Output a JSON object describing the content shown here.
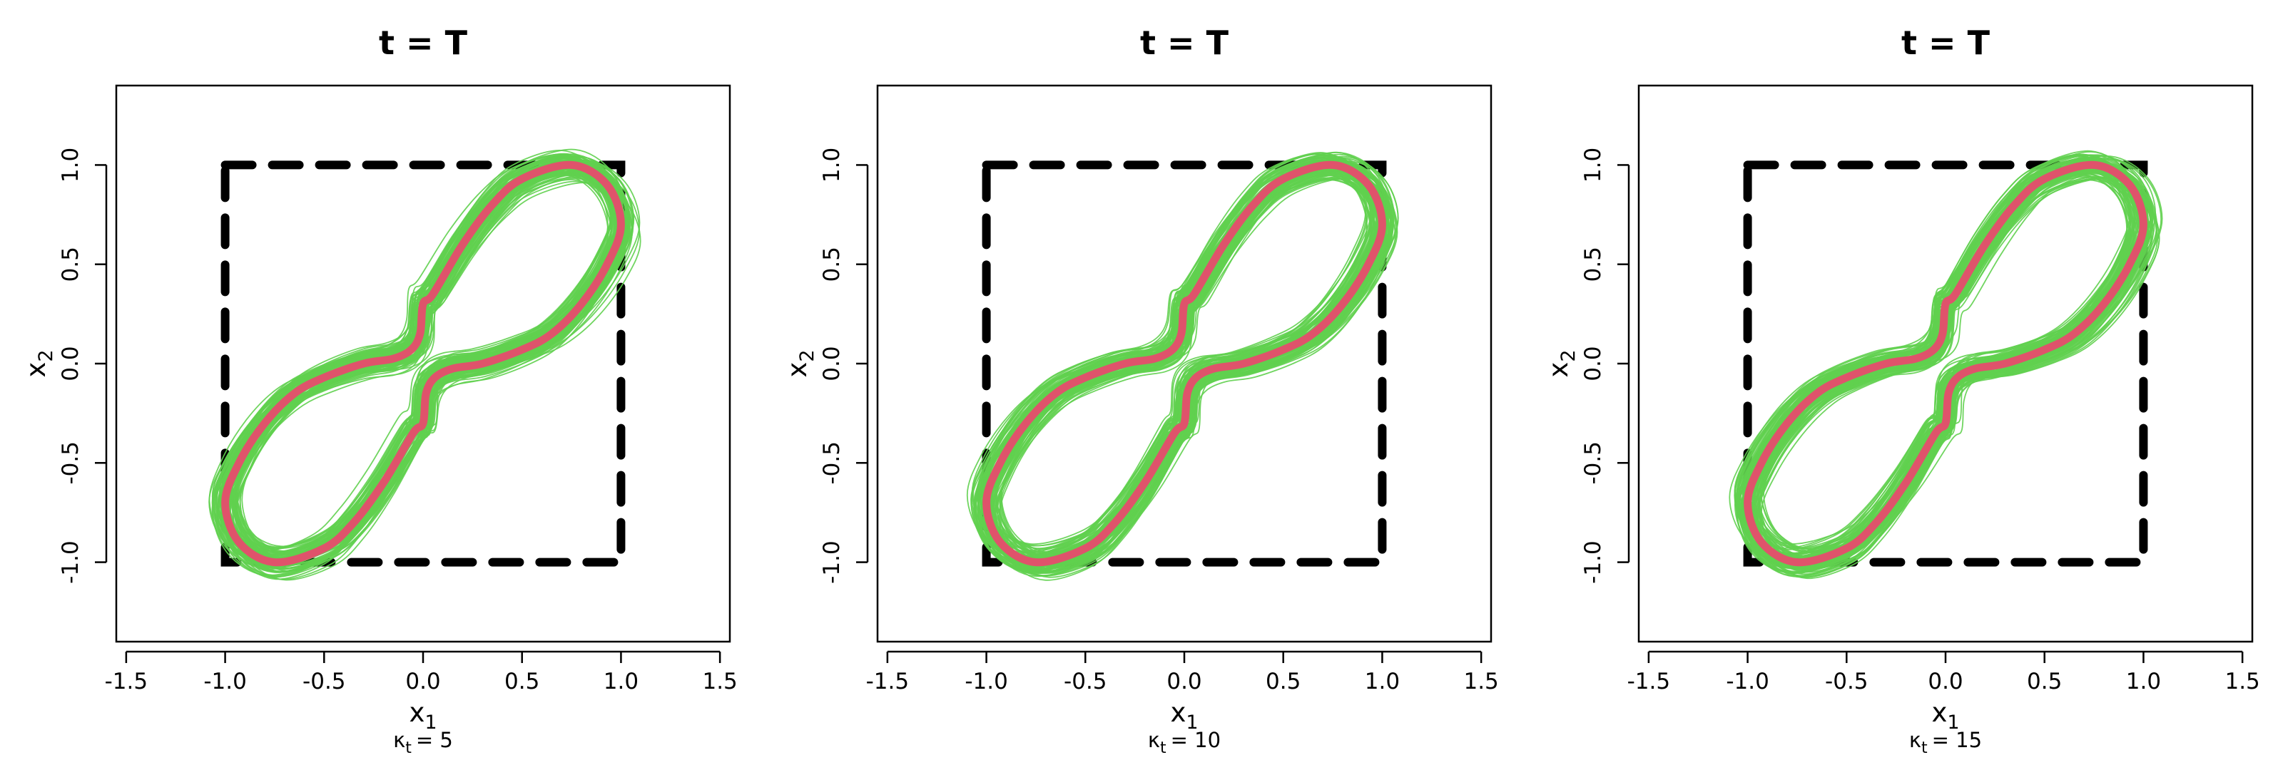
{
  "figure": {
    "panel_count": 3
  },
  "chart_data": [
    {
      "type": "line",
      "title": "t = T",
      "xlabel": "x1",
      "ylabel": "x2",
      "caption": {
        "symbol": "κ",
        "subscript": "t",
        "value": "= 5"
      },
      "xlim": [
        -1.55,
        1.55
      ],
      "ylim": [
        -1.4,
        1.4
      ],
      "xticks": [
        -1.5,
        -1.0,
        -0.5,
        0.0,
        0.5,
        1.0,
        1.5
      ],
      "xtick_labels": [
        "-1.5",
        "-1.0",
        "-0.5",
        "0.0",
        "0.5",
        "1.0",
        "1.5"
      ],
      "yticks": [
        -1.0,
        -0.5,
        0.0,
        0.5,
        1.0
      ],
      "ytick_labels": [
        "-1.0",
        "-0.5",
        "0.0",
        "0.5",
        "1.0"
      ],
      "grid": false,
      "legend": "none",
      "box": {
        "x": [
          -1,
          1
        ],
        "y": [
          -1,
          1
        ],
        "style": "dashed",
        "color": "#000000"
      },
      "reference_curve": {
        "color": "#df536b",
        "x": [
          0.0,
          0.015,
          0.06,
          0.15,
          0.3,
          0.5,
          0.65,
          0.8,
          0.93,
          1.0,
          0.93,
          0.75,
          0.5,
          0.35,
          0.2,
          0.05,
          0.0,
          -0.015,
          -0.06,
          -0.15,
          -0.3,
          -0.5,
          -0.65,
          -0.8,
          -0.93,
          -1.0,
          -0.93,
          -0.75,
          -0.5,
          -0.35,
          -0.2,
          -0.05
        ],
        "y": [
          -0.3,
          -0.15,
          -0.07,
          -0.025,
          0.0,
          0.07,
          0.15,
          0.3,
          0.5,
          0.7,
          0.9,
          1.0,
          0.93,
          0.8,
          0.6,
          0.35,
          0.3,
          0.15,
          0.07,
          0.025,
          0.0,
          -0.07,
          -0.15,
          -0.3,
          -0.5,
          -0.7,
          -0.9,
          -1.0,
          -0.93,
          -0.8,
          -0.6,
          -0.35
        ]
      },
      "ensemble": {
        "color": "#61d04f",
        "n_curves": 100,
        "perturbation": 0.12
      }
    },
    {
      "type": "line",
      "title": "t = T",
      "xlabel": "x1",
      "ylabel": "x2",
      "caption": {
        "symbol": "κ",
        "subscript": "t",
        "value": "= 10"
      },
      "xlim": [
        -1.55,
        1.55
      ],
      "ylim": [
        -1.4,
        1.4
      ],
      "xticks": [
        -1.5,
        -1.0,
        -0.5,
        0.0,
        0.5,
        1.0,
        1.5
      ],
      "xtick_labels": [
        "-1.5",
        "-1.0",
        "-0.5",
        "0.0",
        "0.5",
        "1.0",
        "1.5"
      ],
      "yticks": [
        -1.0,
        -0.5,
        0.0,
        0.5,
        1.0
      ],
      "ytick_labels": [
        "-1.0",
        "-0.5",
        "0.0",
        "0.5",
        "1.0"
      ],
      "grid": false,
      "legend": "none",
      "box": {
        "x": [
          -1,
          1
        ],
        "y": [
          -1,
          1
        ],
        "style": "dashed",
        "color": "#000000"
      },
      "reference_curve": {
        "color": "#df536b",
        "x": [
          0.0,
          0.015,
          0.06,
          0.15,
          0.3,
          0.5,
          0.65,
          0.8,
          0.93,
          1.0,
          0.93,
          0.75,
          0.5,
          0.35,
          0.2,
          0.05,
          0.0,
          -0.015,
          -0.06,
          -0.15,
          -0.3,
          -0.5,
          -0.65,
          -0.8,
          -0.93,
          -1.0,
          -0.93,
          -0.75,
          -0.5,
          -0.35,
          -0.2,
          -0.05
        ],
        "y": [
          -0.3,
          -0.15,
          -0.07,
          -0.025,
          0.0,
          0.07,
          0.15,
          0.3,
          0.5,
          0.7,
          0.9,
          1.0,
          0.93,
          0.8,
          0.6,
          0.35,
          0.3,
          0.15,
          0.07,
          0.025,
          0.0,
          -0.07,
          -0.15,
          -0.3,
          -0.5,
          -0.7,
          -0.9,
          -1.0,
          -0.93,
          -0.8,
          -0.6,
          -0.35
        ]
      },
      "ensemble": {
        "color": "#61d04f",
        "n_curves": 100,
        "perturbation": 0.12
      }
    },
    {
      "type": "line",
      "title": "t = T",
      "xlabel": "x1",
      "ylabel": "x2",
      "caption": {
        "symbol": "κ",
        "subscript": "t",
        "value": "= 15"
      },
      "xlim": [
        -1.55,
        1.55
      ],
      "ylim": [
        -1.4,
        1.4
      ],
      "xticks": [
        -1.5,
        -1.0,
        -0.5,
        0.0,
        0.5,
        1.0,
        1.5
      ],
      "xtick_labels": [
        "-1.5",
        "-1.0",
        "-0.5",
        "0.0",
        "0.5",
        "1.0",
        "1.5"
      ],
      "yticks": [
        -1.0,
        -0.5,
        0.0,
        0.5,
        1.0
      ],
      "ytick_labels": [
        "-1.0",
        "-0.5",
        "0.0",
        "0.5",
        "1.0"
      ],
      "grid": false,
      "legend": "none",
      "box": {
        "x": [
          -1,
          1
        ],
        "y": [
          -1,
          1
        ],
        "style": "dashed",
        "color": "#000000"
      },
      "reference_curve": {
        "color": "#df536b",
        "x": [
          0.0,
          0.015,
          0.06,
          0.15,
          0.3,
          0.5,
          0.65,
          0.8,
          0.93,
          1.0,
          0.93,
          0.75,
          0.5,
          0.35,
          0.2,
          0.05,
          0.0,
          -0.015,
          -0.06,
          -0.15,
          -0.3,
          -0.5,
          -0.65,
          -0.8,
          -0.93,
          -1.0,
          -0.93,
          -0.75,
          -0.5,
          -0.35,
          -0.2,
          -0.05
        ],
        "y": [
          -0.3,
          -0.15,
          -0.07,
          -0.025,
          0.0,
          0.07,
          0.15,
          0.3,
          0.5,
          0.7,
          0.9,
          1.0,
          0.93,
          0.8,
          0.6,
          0.35,
          0.3,
          0.15,
          0.07,
          0.025,
          0.0,
          -0.07,
          -0.15,
          -0.3,
          -0.5,
          -0.7,
          -0.9,
          -1.0,
          -0.93,
          -0.8,
          -0.6,
          -0.35
        ]
      },
      "ensemble": {
        "color": "#61d04f",
        "n_curves": 100,
        "perturbation": 0.12
      }
    }
  ]
}
